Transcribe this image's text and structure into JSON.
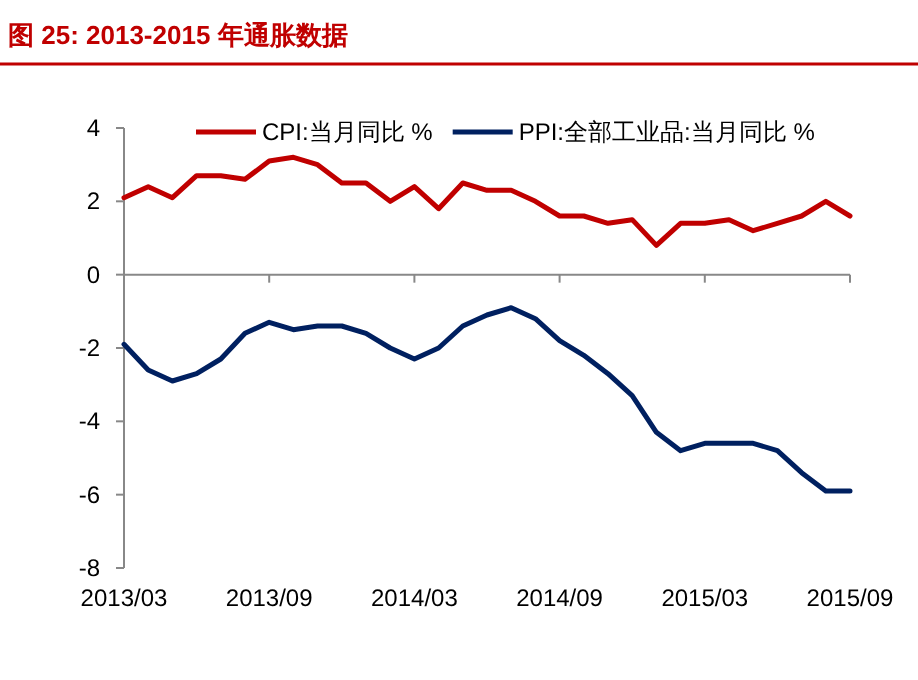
{
  "chart_data": {
    "type": "line",
    "title": "图 25: 2013-2015 年通胀数据",
    "x": [
      "2013-03",
      "2013-04",
      "2013-05",
      "2013-06",
      "2013-07",
      "2013-08",
      "2013-09",
      "2013-10",
      "2013-11",
      "2013-12",
      "2014-01",
      "2014-02",
      "2014-03",
      "2014-04",
      "2014-05",
      "2014-06",
      "2014-07",
      "2014-08",
      "2014-09",
      "2014-10",
      "2014-11",
      "2014-12",
      "2015-01",
      "2015-02",
      "2015-03",
      "2015-04",
      "2015-05",
      "2015-06",
      "2015-07",
      "2015-08",
      "2015-09"
    ],
    "series": [
      {
        "name": "CPI:当月同比 %",
        "color": "#c00000",
        "values": [
          2.1,
          2.4,
          2.1,
          2.7,
          2.7,
          2.6,
          3.1,
          3.2,
          3.0,
          2.5,
          2.5,
          2.0,
          2.4,
          1.8,
          2.5,
          2.3,
          2.3,
          2.0,
          1.6,
          1.6,
          1.4,
          1.5,
          0.8,
          1.4,
          1.4,
          1.5,
          1.2,
          1.4,
          1.6,
          2.0,
          1.6
        ]
      },
      {
        "name": "PPI:全部工业品:当月同比 %",
        "color": "#002060",
        "values": [
          -1.9,
          -2.6,
          -2.9,
          -2.7,
          -2.3,
          -1.6,
          -1.3,
          -1.5,
          -1.4,
          -1.4,
          -1.6,
          -2.0,
          -2.3,
          -2.0,
          -1.4,
          -1.1,
          -0.9,
          -1.2,
          -1.8,
          -2.2,
          -2.7,
          -3.3,
          -4.3,
          -4.8,
          -4.6,
          -4.6,
          -4.6,
          -4.8,
          -5.4,
          -5.9,
          -5.9
        ]
      }
    ],
    "xlim": [
      "2013-03",
      "2015-09"
    ],
    "xticks": [
      {
        "value": "2013-03",
        "label": "2013/03"
      },
      {
        "value": "2013-09",
        "label": "2013/09"
      },
      {
        "value": "2014-03",
        "label": "2014/03"
      },
      {
        "value": "2014-09",
        "label": "2014/09"
      },
      {
        "value": "2015-03",
        "label": "2015/03"
      },
      {
        "value": "2015-09",
        "label": "2015/09"
      }
    ],
    "ylim": [
      -8,
      4
    ],
    "yticks": [
      -8,
      -6,
      -4,
      -2,
      0,
      2,
      4
    ],
    "legend": "top",
    "line_style": "solid"
  }
}
